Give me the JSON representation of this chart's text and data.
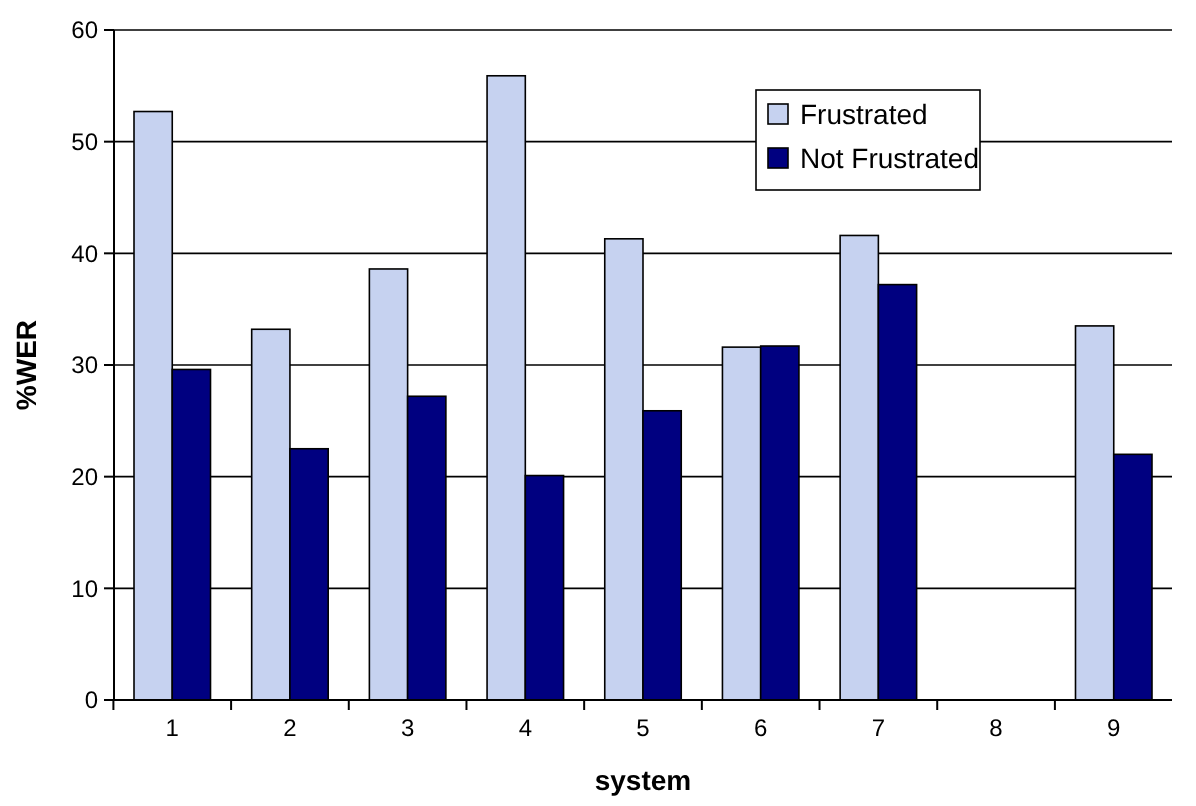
{
  "chart_data": {
    "type": "bar",
    "xlabel": "system",
    "ylabel": "%WER",
    "categories": [
      "1",
      "2",
      "3",
      "4",
      "5",
      "6",
      "7",
      "8",
      "9"
    ],
    "series": [
      {
        "name": "Frustrated",
        "color": "#c6d2f0",
        "values": [
          52.7,
          33.2,
          38.6,
          55.9,
          41.3,
          31.6,
          41.6,
          null,
          33.5
        ]
      },
      {
        "name": "Not Frustrated",
        "color": "#000080",
        "values": [
          29.6,
          22.5,
          27.2,
          20.1,
          25.9,
          31.7,
          37.2,
          null,
          22.0
        ]
      }
    ],
    "ylim": [
      0,
      60
    ],
    "yticks": [
      0,
      10,
      20,
      30,
      40,
      50,
      60
    ],
    "grid": "y",
    "legend": "top right"
  }
}
